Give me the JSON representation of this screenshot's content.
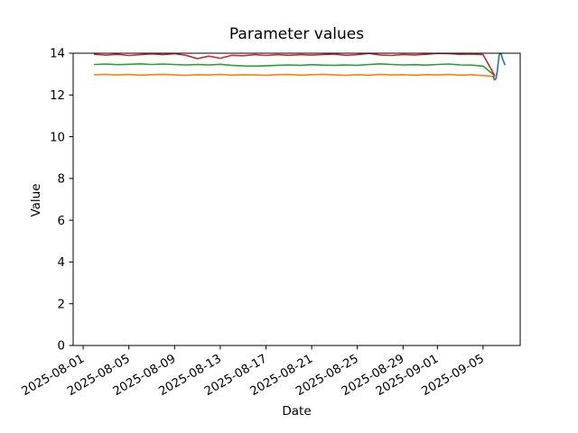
{
  "chart_data": {
    "type": "line",
    "title": "Parameter values",
    "xlabel": "Date",
    "ylabel": "Value",
    "grid": false,
    "legend_position": "none",
    "background_color": "#ffffff",
    "spine_color": "#000000",
    "xlim": [
      "2025-07-31 03:00",
      "2025-09-08 06:00"
    ],
    "ylim": [
      0,
      14
    ],
    "x_ticks": [
      "2025-08-01",
      "2025-08-05",
      "2025-08-09",
      "2025-08-13",
      "2025-08-17",
      "2025-08-21",
      "2025-08-25",
      "2025-08-29",
      "2025-09-01",
      "2025-09-05"
    ],
    "y_ticks": [
      0,
      2,
      4,
      6,
      8,
      10,
      12,
      14
    ],
    "dates": [
      "2025-08-02",
      "2025-08-03",
      "2025-08-04",
      "2025-08-05",
      "2025-08-06",
      "2025-08-07",
      "2025-08-08",
      "2025-08-09",
      "2025-08-10",
      "2025-08-11",
      "2025-08-12",
      "2025-08-13",
      "2025-08-14",
      "2025-08-15",
      "2025-08-16",
      "2025-08-17",
      "2025-08-18",
      "2025-08-19",
      "2025-08-20",
      "2025-08-21",
      "2025-08-22",
      "2025-08-23",
      "2025-08-24",
      "2025-08-25",
      "2025-08-26",
      "2025-08-27",
      "2025-08-28",
      "2025-08-29",
      "2025-08-30",
      "2025-08-31",
      "2025-09-01",
      "2025-09-02",
      "2025-09-03",
      "2025-09-04",
      "2025-09-05",
      "2025-09-06"
    ],
    "series": [
      {
        "name": "orange",
        "color": "#ff7f0e",
        "values": [
          12.97,
          12.99,
          12.96,
          12.98,
          12.95,
          12.97,
          12.99,
          12.96,
          12.94,
          12.97,
          12.96,
          12.98,
          12.95,
          12.97,
          12.96,
          12.94,
          12.97,
          12.98,
          12.95,
          12.97,
          12.99,
          12.96,
          12.94,
          12.97,
          12.95,
          12.98,
          12.96,
          12.97,
          12.95,
          12.97,
          12.96,
          12.98,
          12.95,
          12.97,
          12.93,
          12.88
        ]
      },
      {
        "name": "green",
        "color": "#2ca02c",
        "values": [
          13.46,
          13.48,
          13.45,
          13.47,
          13.49,
          13.46,
          13.48,
          13.46,
          13.44,
          13.46,
          13.44,
          13.47,
          13.42,
          13.39,
          13.38,
          13.4,
          13.42,
          13.44,
          13.42,
          13.45,
          13.43,
          13.42,
          13.44,
          13.42,
          13.46,
          13.49,
          13.46,
          13.44,
          13.45,
          13.43,
          13.46,
          13.48,
          13.44,
          13.43,
          13.38,
          12.93
        ]
      },
      {
        "name": "red",
        "color": "#d62728",
        "values": [
          13.95,
          13.91,
          13.95,
          13.89,
          13.93,
          13.97,
          13.93,
          13.98,
          13.9,
          13.74,
          13.86,
          13.76,
          13.9,
          13.88,
          13.93,
          13.89,
          13.93,
          13.9,
          13.93,
          13.91,
          13.94,
          13.96,
          13.9,
          13.93,
          13.99,
          13.92,
          13.89,
          13.94,
          13.92,
          13.95,
          13.99,
          13.98,
          13.95,
          13.96,
          13.93,
          12.95
        ]
      },
      {
        "name": "blue",
        "color": "#1f77b4",
        "x": [
          "2025-09-05 21:00",
          "2025-09-06 00:00",
          "2025-09-06 03:00",
          "2025-09-06 06:00",
          "2025-09-06 09:00",
          "2025-09-06 11:00",
          "2025-09-06 14:00",
          "2025-09-06 17:00",
          "2025-09-06 22:00"
        ],
        "values": [
          12.88,
          12.72,
          12.78,
          13.15,
          13.8,
          13.99,
          13.97,
          13.72,
          13.45
        ]
      }
    ]
  }
}
